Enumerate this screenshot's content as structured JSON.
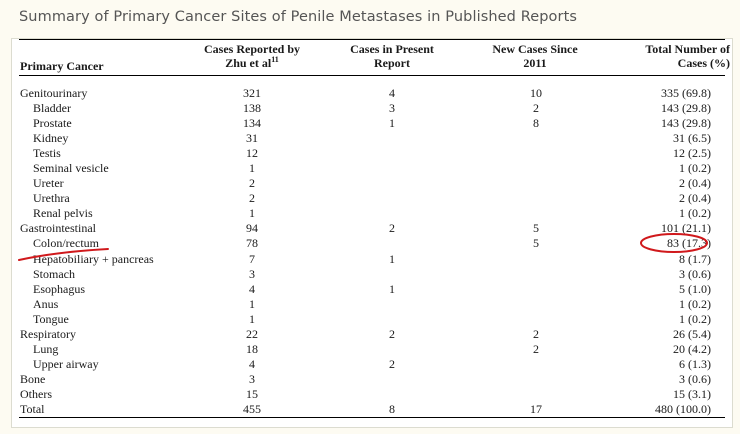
{
  "caption": "Summary of Primary Cancer Sites of Penile Metastases in Published Reports",
  "headers": {
    "primary_cancer": "Primary Cancer",
    "zhu_line1": "Cases Reported by",
    "zhu_line2": "Zhu et al",
    "zhu_ref": "11",
    "present_line1": "Cases in Present",
    "present_line2": "Report",
    "new_line1": "New Cases Since",
    "new_line2": "2011",
    "total_line1": "Total Number of",
    "total_line2": "Cases (%)"
  },
  "rows": [
    {
      "name": "Genitourinary",
      "zhu": "321",
      "present": "4",
      "new": "10",
      "total": "335 (69.8)",
      "indent": false
    },
    {
      "name": "Bladder",
      "zhu": "138",
      "present": "3",
      "new": "2",
      "total": "143 (29.8)",
      "indent": true
    },
    {
      "name": "Prostate",
      "zhu": "134",
      "present": "1",
      "new": "8",
      "total": "143 (29.8)",
      "indent": true
    },
    {
      "name": "Kidney",
      "zhu": "31",
      "present": "",
      "new": "",
      "total": "31 (6.5)",
      "indent": true
    },
    {
      "name": "Testis",
      "zhu": "12",
      "present": "",
      "new": "",
      "total": "12 (2.5)",
      "indent": true
    },
    {
      "name": "Seminal vesicle",
      "zhu": "1",
      "present": "",
      "new": "",
      "total": "1 (0.2)",
      "indent": true
    },
    {
      "name": "Ureter",
      "zhu": "2",
      "present": "",
      "new": "",
      "total": "2 (0.4)",
      "indent": true
    },
    {
      "name": "Urethra",
      "zhu": "2",
      "present": "",
      "new": "",
      "total": "2 (0.4)",
      "indent": true
    },
    {
      "name": "Renal pelvis",
      "zhu": "1",
      "present": "",
      "new": "",
      "total": "1 (0.2)",
      "indent": true
    },
    {
      "name": "Gastrointestinal",
      "zhu": "94",
      "present": "2",
      "new": "5",
      "total": "101 (21.1)",
      "indent": false
    },
    {
      "name": "Colon/rectum",
      "zhu": "78",
      "present": "",
      "new": "5",
      "total": "83 (17.3)",
      "indent": true
    },
    {
      "name": "Hepatobiliary + pancreas",
      "zhu": "7",
      "present": "1",
      "new": "",
      "total": "8 (1.7)",
      "indent": true
    },
    {
      "name": "Stomach",
      "zhu": "3",
      "present": "",
      "new": "",
      "total": "3 (0.6)",
      "indent": true
    },
    {
      "name": "Esophagus",
      "zhu": "4",
      "present": "1",
      "new": "",
      "total": "5 (1.0)",
      "indent": true
    },
    {
      "name": "Anus",
      "zhu": "1",
      "present": "",
      "new": "",
      "total": "1 (0.2)",
      "indent": true
    },
    {
      "name": "Tongue",
      "zhu": "1",
      "present": "",
      "new": "",
      "total": "1 (0.2)",
      "indent": true
    },
    {
      "name": "Respiratory",
      "zhu": "22",
      "present": "2",
      "new": "2",
      "total": "26 (5.4)",
      "indent": false
    },
    {
      "name": "Lung",
      "zhu": "18",
      "present": "",
      "new": "2",
      "total": "20 (4.2)",
      "indent": true
    },
    {
      "name": "Upper airway",
      "zhu": "4",
      "present": "2",
      "new": "",
      "total": "6 (1.3)",
      "indent": true
    },
    {
      "name": "Bone",
      "zhu": "3",
      "present": "",
      "new": "",
      "total": "3 (0.6)",
      "indent": false
    },
    {
      "name": "Others",
      "zhu": "15",
      "present": "",
      "new": "",
      "total": "15 (3.1)",
      "indent": false
    },
    {
      "name": "Total",
      "zhu": "455",
      "present": "8",
      "new": "17",
      "total": "480 (100.0)",
      "indent": false
    }
  ],
  "annotation_color": "#d0191c"
}
